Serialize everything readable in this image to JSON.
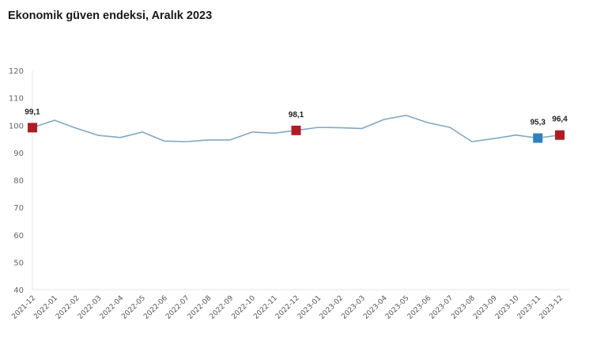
{
  "chart_data": {
    "type": "line",
    "title": "Ekonomik güven endeksi, Aralık 2023",
    "xlabel": "",
    "ylabel": "",
    "ylim": [
      40,
      120
    ],
    "yticks": [
      40,
      50,
      60,
      70,
      80,
      90,
      100,
      110,
      120
    ],
    "grid": false,
    "legend": null,
    "categories": [
      "2021-12",
      "2022-01",
      "2022-02",
      "2022-03",
      "2022-04",
      "2022-05",
      "2022-06",
      "2022-07",
      "2022-08",
      "2022-09",
      "2022-10",
      "2022-11",
      "2022-12",
      "2023-01",
      "2023-02",
      "2023-03",
      "2023-04",
      "2023-05",
      "2023-06",
      "2023-07",
      "2023-08",
      "2023-09",
      "2023-10",
      "2023-11",
      "2023-12"
    ],
    "series": [
      {
        "name": "Ekonomik güven endeksi",
        "color": "#7fa8c4",
        "values": [
          99.1,
          101.8,
          98.9,
          96.3,
          95.5,
          97.5,
          94.2,
          94.0,
          94.6,
          94.6,
          97.5,
          97.1,
          98.1,
          99.2,
          99.1,
          98.8,
          102.1,
          103.6,
          100.9,
          99.2,
          94.0,
          95.1,
          96.4,
          95.3,
          96.4
        ]
      }
    ],
    "highlighted_points": [
      {
        "category": "2021-12",
        "value": 99.1,
        "label": "99,1",
        "color": "#b01c24"
      },
      {
        "category": "2022-12",
        "value": 98.1,
        "label": "98,1",
        "color": "#b01c24"
      },
      {
        "category": "2023-11",
        "value": 95.3,
        "label": "95,3",
        "color": "#2e80c0"
      },
      {
        "category": "2023-12",
        "value": 96.4,
        "label": "96,4",
        "color": "#b01c24"
      }
    ]
  }
}
